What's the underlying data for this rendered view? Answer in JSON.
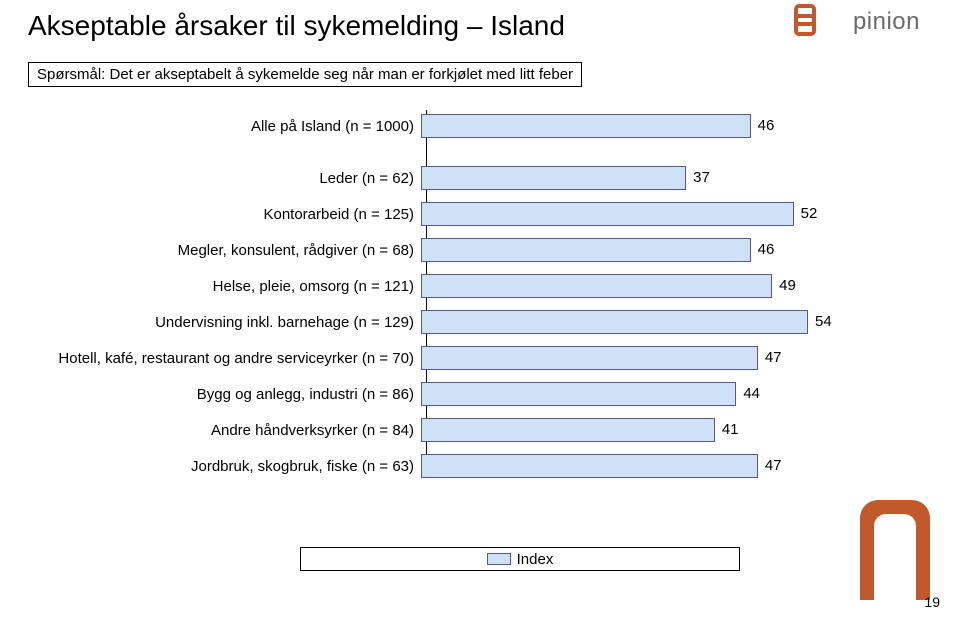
{
  "title": "Akseptable årsaker til sykemelding – Island",
  "subtitle": "Spørsmål: Det er akseptabelt å sykemelde seg når man er forkjølet med litt feber",
  "brand": "pinion",
  "legend_label": "Index",
  "legend_swatch_color": "#cfe1f7",
  "page_number": "19",
  "bar_color": "#cfe1f7",
  "bar_border": "#5a5a8a",
  "axis_max": 60,
  "rows": [
    {
      "label": "Alle på Island (n = 1000)",
      "value": 46,
      "gap_after": true
    },
    {
      "label": "Leder (n = 62)",
      "value": 37
    },
    {
      "label": "Kontorarbeid (n = 125)",
      "value": 52
    },
    {
      "label": "Megler, konsulent, rådgiver (n = 68)",
      "value": 46
    },
    {
      "label": "Helse, pleie, omsorg (n = 121)",
      "value": 49
    },
    {
      "label": "Undervisning inkl. barnehage (n = 129)",
      "value": 54
    },
    {
      "label": "Hotell, kafé, restaurant og andre serviceyrker (n = 70)",
      "value": 47
    },
    {
      "label": "Bygg og anlegg, industri (n = 86)",
      "value": 44
    },
    {
      "label": "Andre håndverksyrker (n = 84)",
      "value": 41
    },
    {
      "label": "Jordbruk, skogbruk, fiske (n = 63)",
      "value": 47
    }
  ],
  "corner_color": "#c2592d"
}
